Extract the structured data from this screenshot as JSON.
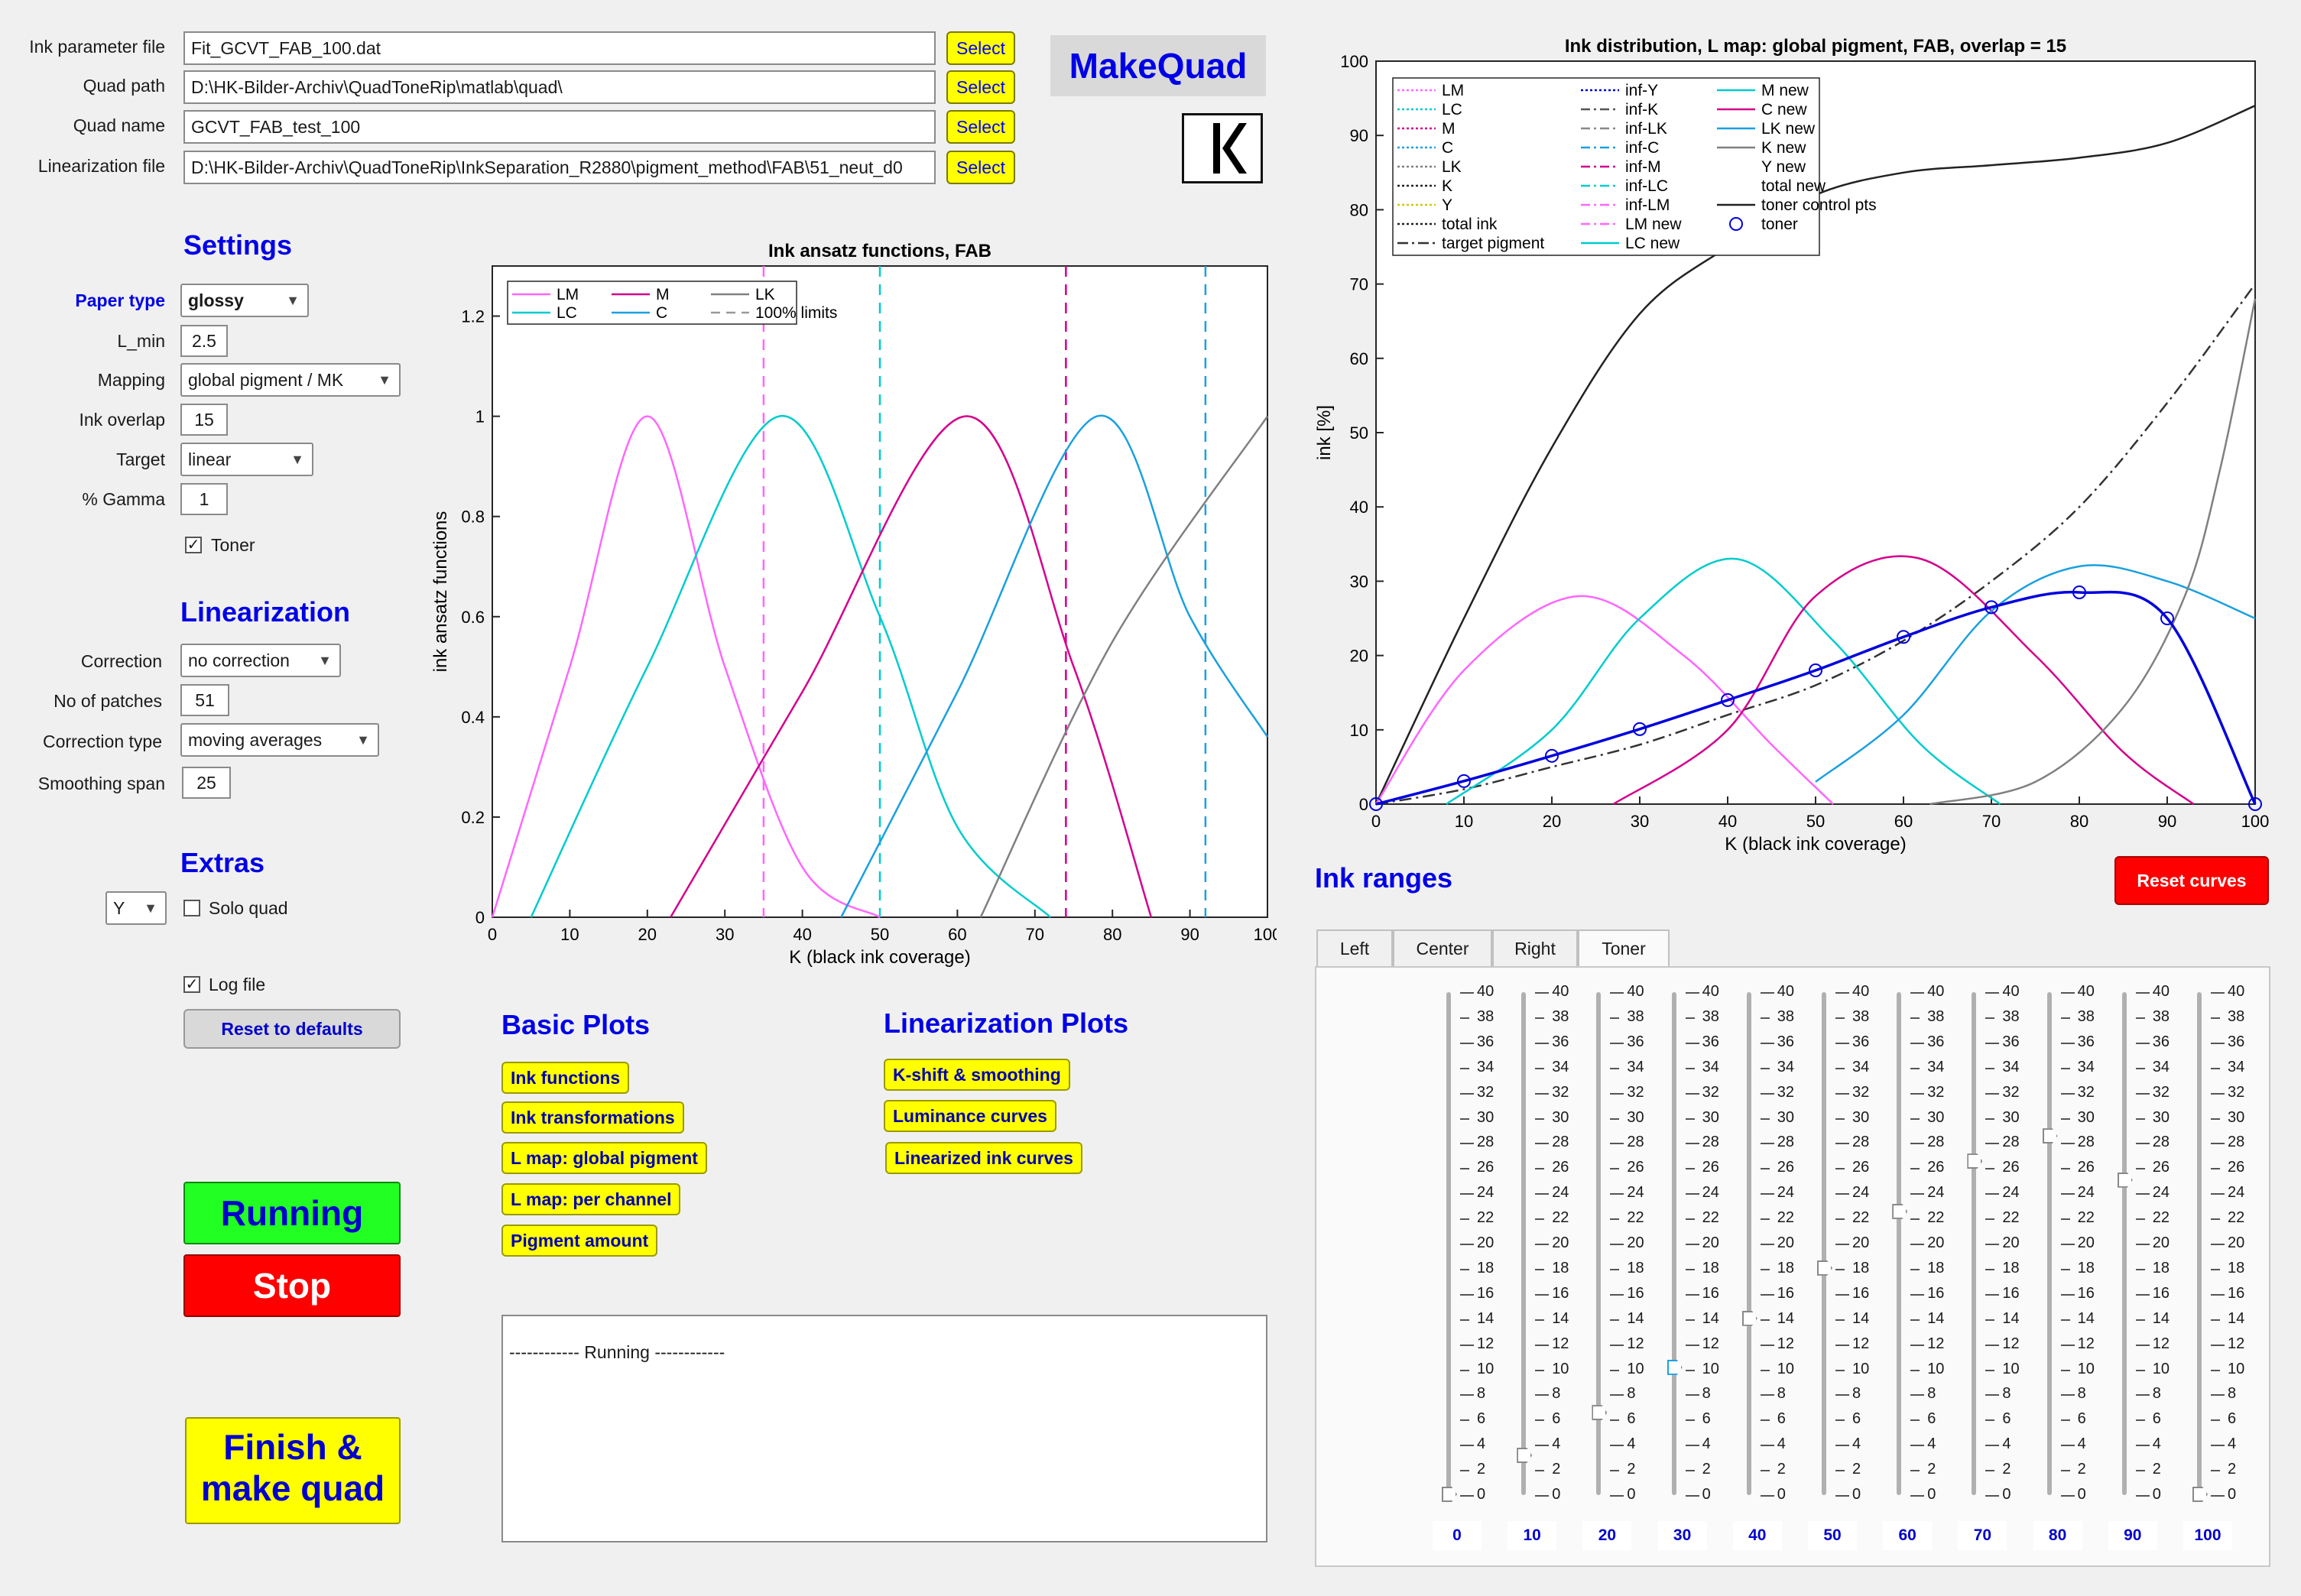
{
  "files": {
    "ink_param_label": "Ink parameter file",
    "ink_param_value": "Fit_GCVT_FAB_100.dat",
    "quad_path_label": "Quad path",
    "quad_path_value": "D:\\HK-Bilder-Archiv\\QuadToneRip\\matlab\\quad\\",
    "quad_name_label": "Quad name",
    "quad_name_value": "GCVT_FAB_test_100",
    "lin_file_label": "Linearization file",
    "lin_file_value": "D:\\HK-Bilder-Archiv\\QuadToneRip\\InkSeparation_R2880\\pigment_method\\FAB\\51_neut_d0",
    "select_label": "Select"
  },
  "app": {
    "makequad_label": "MakeQuad",
    "logo_letter": "K"
  },
  "settings": {
    "heading": "Settings",
    "paper_type_label": "Paper type",
    "paper_type_value": "glossy",
    "lmin_label": "L_min",
    "lmin_value": "2.5",
    "mapping_label": "Mapping",
    "mapping_value": "global pigment / MK",
    "overlap_label": "Ink overlap",
    "overlap_value": "15",
    "target_label": "Target",
    "target_value": "linear",
    "gamma_label": "% Gamma",
    "gamma_value": "1",
    "toner_label": "Toner",
    "toner_checked": "✓"
  },
  "linearization": {
    "heading": "Linearization",
    "correction_label": "Correction",
    "correction_value": "no correction",
    "patches_label": "No of patches",
    "patches_value": "51",
    "corr_type_label": "Correction type",
    "corr_type_value": "moving averages",
    "smoothing_label": "Smoothing span",
    "smoothing_value": "25"
  },
  "extras": {
    "heading": "Extras",
    "channel_value": "Y",
    "solo_label": "Solo quad",
    "log_label": "Log file",
    "log_checked": "✓",
    "reset_label": "Reset to defaults"
  },
  "controls": {
    "running_label": "Running",
    "stop_label": "Stop",
    "finish_line1": "Finish &",
    "finish_line2": "make quad"
  },
  "basic_plots": {
    "heading": "Basic Plots",
    "ink_functions": "Ink functions",
    "ink_transformations": "Ink transformations",
    "lmap_global": "L map: global pigment",
    "lmap_channel": "L map: per channel",
    "pigment_amount": "Pigment amount"
  },
  "lin_plots": {
    "heading": "Linearization Plots",
    "kshift": "K-shift & smoothing",
    "luminance": "Luminance curves",
    "linearized": "Linearized ink curves"
  },
  "log": {
    "text": "------------ Running ------------"
  },
  "ink_ranges": {
    "heading": "Ink ranges",
    "reset_curves": "Reset curves",
    "tabs": [
      "Left",
      "Center",
      "Right",
      "Toner"
    ],
    "ticks": [
      "40",
      "38",
      "36",
      "34",
      "32",
      "30",
      "28",
      "26",
      "24",
      "22",
      "20",
      "18",
      "16",
      "14",
      "12",
      "10",
      "8",
      "6",
      "4",
      "2",
      "0"
    ],
    "slider_labels": [
      "0",
      "10",
      "20",
      "30",
      "40",
      "50",
      "60",
      "70",
      "80",
      "90",
      "100"
    ],
    "slider_values": [
      0,
      3.1,
      6.5,
      10.1,
      14.0,
      18.0,
      22.5,
      26.5,
      28.5,
      25.0,
      0
    ]
  },
  "chart_data": [
    {
      "type": "line",
      "title": "Ink ansatz functions, FAB",
      "xlabel": "K (black ink coverage)",
      "ylabel": "ink ansatz functions",
      "xlim": [
        0,
        100
      ],
      "ylim": [
        0,
        1.3
      ],
      "xticks": [
        "0",
        "10",
        "20",
        "30",
        "40",
        "50",
        "60",
        "70",
        "80",
        "90",
        "100"
      ],
      "yticks": [
        "0",
        "0.2",
        "0.4",
        "0.6",
        "0.8",
        "1",
        "1.2"
      ],
      "legend_location": "top-left",
      "legend": [
        "LM",
        "M",
        "LK",
        "LC",
        "C",
        "100% limits"
      ],
      "series": [
        {
          "name": "LM",
          "color": "#ff66ff",
          "x": [
            0,
            10,
            20,
            30,
            40,
            50
          ],
          "y": [
            0,
            0.5,
            1,
            0.5,
            0.1,
            0
          ]
        },
        {
          "name": "LC",
          "color": "#00cccc",
          "x": [
            5,
            20,
            37,
            50,
            60,
            72
          ],
          "y": [
            0,
            0.5,
            1,
            0.6,
            0.18,
            0
          ]
        },
        {
          "name": "M",
          "color": "#d4008c",
          "x": [
            23,
            40,
            61,
            75,
            85
          ],
          "y": [
            0,
            0.45,
            1,
            0.5,
            0
          ]
        },
        {
          "name": "C",
          "color": "#1aa0e0",
          "x": [
            45,
            60,
            78,
            90,
            100
          ],
          "y": [
            0,
            0.45,
            1,
            0.6,
            0.36
          ]
        },
        {
          "name": "LK",
          "color": "#808080",
          "x": [
            63,
            80,
            100
          ],
          "y": [
            0,
            0.55,
            1
          ]
        }
      ],
      "limits": [
        {
          "x": 35,
          "color": "#ff66ff"
        },
        {
          "x": 50,
          "color": "#00cccc"
        },
        {
          "x": 74,
          "color": "#d4008c"
        },
        {
          "x": 92,
          "color": "#1aa0e0"
        }
      ]
    },
    {
      "type": "line",
      "title": "Ink distribution, L map: global pigment, FAB, overlap = 15",
      "xlabel": "K (black ink coverage)",
      "ylabel": "ink [%]",
      "xlim": [
        0,
        100
      ],
      "ylim": [
        0,
        100
      ],
      "xticks": [
        "0",
        "10",
        "20",
        "30",
        "40",
        "50",
        "60",
        "70",
        "80",
        "90",
        "100"
      ],
      "yticks": [
        "0",
        "10",
        "20",
        "30",
        "40",
        "50",
        "60",
        "70",
        "80",
        "90",
        "100"
      ],
      "legend_location": "top-left",
      "legend": [
        "LM",
        "LC",
        "M",
        "C",
        "LK",
        "K",
        "Y",
        "total ink",
        "target pigment",
        "inf-Y",
        "inf-K",
        "inf-LK",
        "inf-C",
        "inf-M",
        "inf-LC",
        "inf-LM",
        "LM new",
        "LC new",
        "M new",
        "C new",
        "LK new",
        "K new",
        "Y new",
        "total new",
        "toner control pts",
        "toner"
      ],
      "series": [
        {
          "name": "total new",
          "color": "#222222",
          "x": [
            0,
            10,
            20,
            30,
            40,
            50,
            60,
            70,
            80,
            90,
            100
          ],
          "y": [
            0,
            25,
            48,
            66,
            75,
            82,
            85,
            86,
            87,
            89,
            94
          ]
        },
        {
          "name": "target pigment",
          "color": "#333333",
          "x": [
            0,
            10,
            20,
            30,
            40,
            50,
            60,
            70,
            80,
            90,
            100
          ],
          "y": [
            0,
            2,
            5,
            8,
            12,
            16,
            22,
            30,
            40,
            54,
            70
          ]
        },
        {
          "name": "LM new",
          "color": "#ff66ff",
          "x": [
            0,
            10,
            23,
            35,
            45,
            52
          ],
          "y": [
            0,
            18,
            28,
            20,
            8,
            0
          ]
        },
        {
          "name": "LC new",
          "color": "#00cccc",
          "x": [
            8,
            20,
            30,
            41,
            52,
            62,
            71
          ],
          "y": [
            0,
            10,
            25,
            33,
            22,
            8,
            0
          ]
        },
        {
          "name": "M new",
          "color": "#d4008c",
          "x": [
            27,
            40,
            50,
            62,
            75,
            85,
            93
          ],
          "y": [
            0,
            10,
            28,
            33,
            20,
            7,
            0
          ]
        },
        {
          "name": "C new",
          "color": "#1aa0e0",
          "x": [
            50,
            60,
            70,
            80,
            90,
            100
          ],
          "y": [
            3,
            12,
            26,
            32,
            30,
            25
          ]
        },
        {
          "name": "LK new",
          "color": "#808080",
          "x": [
            63,
            75,
            85,
            92,
            96,
            100
          ],
          "y": [
            0,
            3,
            13,
            28,
            45,
            68
          ]
        },
        {
          "name": "toner",
          "color": "#0000dd",
          "x": [
            0,
            10,
            20,
            30,
            40,
            50,
            60,
            70,
            80,
            90,
            100
          ],
          "y": [
            0,
            3.1,
            6.5,
            10.1,
            14.0,
            18.0,
            22.5,
            26.5,
            28.5,
            25.0,
            0
          ]
        }
      ]
    }
  ]
}
